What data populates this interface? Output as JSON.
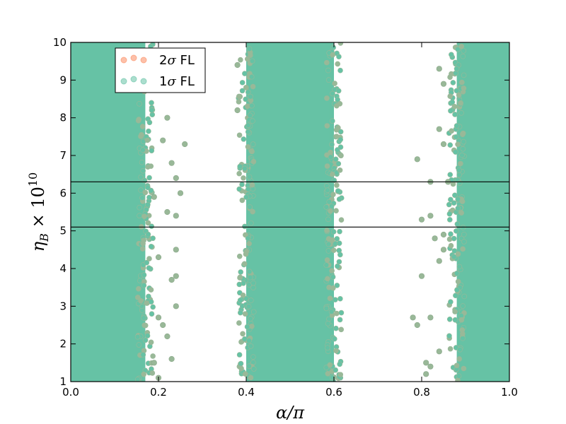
{
  "chart_data": {
    "type": "scatter",
    "xlabel": "α/π",
    "ylabel": "η_B × 10^10",
    "xlim": [
      0.0,
      1.0
    ],
    "ylim": [
      1,
      10
    ],
    "xticks": [
      "0.0",
      "0.2",
      "0.4",
      "0.6",
      "0.8",
      "1.0"
    ],
    "yticks": [
      "1",
      "2",
      "3",
      "4",
      "5",
      "6",
      "7",
      "8",
      "9",
      "10"
    ],
    "legend_position": "top-left",
    "hlines": [
      5.1,
      6.3
    ],
    "series": [
      {
        "name": "2σ FL",
        "color": "#fc8d62",
        "bands": [
          [
            0.0,
            0.17
          ],
          [
            0.4,
            0.6
          ],
          [
            0.88,
            1.0
          ]
        ],
        "scatter_points": [
          [
            0.2,
            8.9
          ],
          [
            0.22,
            8.0
          ],
          [
            0.21,
            7.4
          ],
          [
            0.23,
            6.8
          ],
          [
            0.19,
            5.9
          ],
          [
            0.22,
            5.5
          ],
          [
            0.2,
            4.3
          ],
          [
            0.23,
            3.7
          ],
          [
            0.2,
            2.7
          ],
          [
            0.22,
            2.2
          ],
          [
            0.19,
            1.5
          ],
          [
            0.2,
            1.1
          ]
        ]
      },
      {
        "name": "1σ FL",
        "color": "#66c2a5",
        "bands": [
          [
            0.0,
            0.16
          ],
          [
            0.4,
            0.59
          ],
          [
            0.89,
            1.0
          ]
        ],
        "scatter_points": [
          [
            0.26,
            7.3
          ],
          [
            0.24,
            6.4
          ],
          [
            0.25,
            6.0
          ],
          [
            0.24,
            5.4
          ],
          [
            0.24,
            4.5
          ],
          [
            0.24,
            3.8
          ],
          [
            0.24,
            3.0
          ],
          [
            0.21,
            2.5
          ],
          [
            0.23,
            1.6
          ],
          [
            0.38,
            9.4
          ],
          [
            0.38,
            8.2
          ],
          [
            0.79,
            6.9
          ],
          [
            0.82,
            6.3
          ],
          [
            0.8,
            5.3
          ],
          [
            0.82,
            5.4
          ],
          [
            0.8,
            3.8
          ],
          [
            0.78,
            2.7
          ],
          [
            0.79,
            2.5
          ],
          [
            0.82,
            2.7
          ],
          [
            0.81,
            1.5
          ],
          [
            0.82,
            1.4
          ],
          [
            0.81,
            1.2
          ],
          [
            0.84,
            9.3
          ],
          [
            0.85,
            8.9
          ],
          [
            0.84,
            7.7
          ],
          [
            0.85,
            7.3
          ],
          [
            0.85,
            4.5
          ],
          [
            0.84,
            4.2
          ],
          [
            0.86,
            6.3
          ],
          [
            0.85,
            4.9
          ],
          [
            0.83,
            4.8
          ],
          [
            0.84,
            1.8
          ]
        ]
      }
    ],
    "scatter_color": "#99b898"
  }
}
